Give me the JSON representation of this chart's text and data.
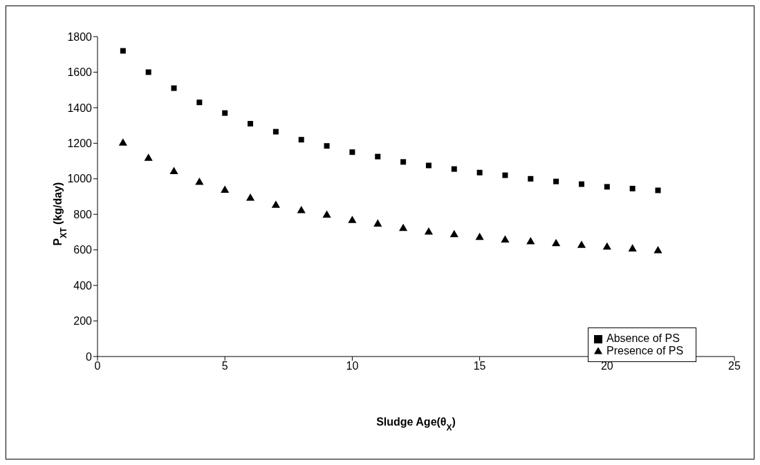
{
  "chart_data": {
    "type": "scatter",
    "xlabel": "Sludge Age(θ$_{X}$)",
    "ylabel": "P$_{XT}$ (kg/day)",
    "x": [
      1,
      2,
      3,
      4,
      5,
      6,
      7,
      8,
      9,
      10,
      11,
      12,
      13,
      14,
      15,
      16,
      17,
      18,
      19,
      20,
      21,
      22
    ],
    "series": [
      {
        "name": "Absence of PS",
        "color": "#000000",
        "marker": "square",
        "values": [
          1720,
          1600,
          1510,
          1430,
          1370,
          1310,
          1265,
          1220,
          1185,
          1150,
          1125,
          1095,
          1075,
          1055,
          1035,
          1020,
          1000,
          985,
          970,
          955,
          945,
          935
        ]
      },
      {
        "name": "Presence of PS",
        "color": "#000000",
        "marker": "triangle",
        "values": [
          1200,
          1115,
          1040,
          980,
          935,
          890,
          850,
          820,
          795,
          765,
          745,
          720,
          700,
          685,
          670,
          655,
          645,
          635,
          625,
          615,
          605,
          595
        ]
      }
    ],
    "xlim": [
      0,
      25
    ],
    "xticks": [
      0,
      5,
      10,
      15,
      20,
      25
    ],
    "ylim": [
      0,
      1800
    ],
    "yticks": [
      0,
      200,
      400,
      600,
      800,
      1000,
      1200,
      1400,
      1600,
      1800
    ],
    "grid": false,
    "legend": "bottom right"
  }
}
